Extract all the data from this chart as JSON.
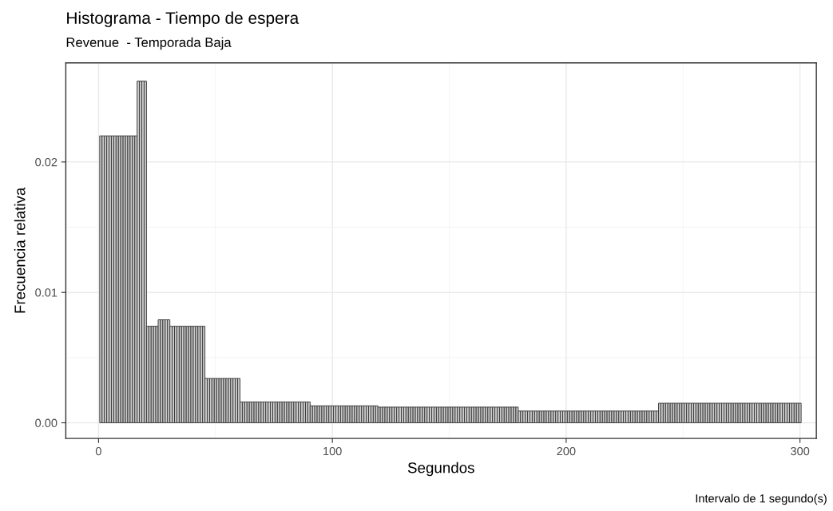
{
  "chart_data": {
    "type": "histogram",
    "title": "Histograma - Tiempo de espera",
    "subtitle": "Revenue  - Temporada Baja",
    "xlabel": "Segundos",
    "ylabel": "Frecuencia relativa",
    "annotations": [
      "Intervalo de 1 segundo(s)"
    ],
    "color": "#cccccc",
    "bins": [
      0.5,
      1.5,
      2.5,
      3.5,
      4.5,
      5.5,
      6.5,
      7.5,
      8.5,
      9.5,
      10.5,
      11.5,
      12.5,
      13.5,
      14.5,
      15.5,
      16.5,
      17.5,
      18.5,
      19.5,
      20.5,
      21.5,
      22.5,
      23.5,
      24.5,
      25.5,
      26.5,
      27.5,
      28.5,
      29.5,
      30.5,
      31.5,
      32.5,
      33.5,
      34.5,
      35.5,
      36.5,
      37.5,
      38.5,
      39.5,
      40.5,
      41.5,
      42.5,
      43.5,
      44.5,
      45.5,
      46.5,
      47.5,
      48.5,
      49.5,
      50.5,
      51.5,
      52.5,
      53.5,
      54.5,
      55.5,
      56.5,
      57.5,
      58.5,
      59.5,
      60.5,
      61.5,
      62.5,
      63.5,
      64.5,
      65.5,
      66.5,
      67.5,
      68.5,
      69.5,
      70.5,
      71.5,
      72.5,
      73.5,
      74.5,
      75.5,
      76.5,
      77.5,
      78.5,
      79.5,
      80.5,
      81.5,
      82.5,
      83.5,
      84.5,
      85.5,
      86.5,
      87.5,
      88.5,
      89.5,
      90.5,
      91.5,
      92.5,
      93.5,
      94.5,
      95.5,
      96.5,
      97.5,
      98.5,
      99.5,
      100.5,
      101.5,
      102.5,
      103.5,
      104.5,
      105.5,
      106.5,
      107.5,
      108.5,
      109.5,
      110.5,
      111.5,
      112.5,
      113.5,
      114.5,
      115.5,
      116.5,
      117.5,
      118.5,
      119.5,
      120.5,
      121.5,
      122.5,
      123.5,
      124.5,
      125.5,
      126.5,
      127.5,
      128.5,
      129.5,
      130.5,
      131.5,
      132.5,
      133.5,
      134.5,
      135.5,
      136.5,
      137.5,
      138.5,
      139.5,
      140.5,
      141.5,
      142.5,
      143.5,
      144.5,
      145.5,
      146.5,
      147.5,
      148.5,
      149.5,
      150.5,
      151.5,
      152.5,
      153.5,
      154.5,
      155.5,
      156.5,
      157.5,
      158.5,
      159.5,
      160.5,
      161.5,
      162.5,
      163.5,
      164.5,
      165.5,
      166.5,
      167.5,
      168.5,
      169.5,
      170.5,
      171.5,
      172.5,
      173.5,
      174.5,
      175.5,
      176.5,
      177.5,
      178.5,
      179.5,
      180.5,
      181.5,
      182.5,
      183.5,
      184.5,
      185.5,
      186.5,
      187.5,
      188.5,
      189.5,
      190.5,
      191.5,
      192.5,
      193.5,
      194.5,
      195.5,
      196.5,
      197.5,
      198.5,
      199.5,
      200.5,
      201.5,
      202.5,
      203.5,
      204.5,
      205.5,
      206.5,
      207.5,
      208.5,
      209.5,
      210.5,
      211.5,
      212.5,
      213.5,
      214.5,
      215.5,
      216.5,
      217.5,
      218.5,
      219.5,
      220.5,
      221.5,
      222.5,
      223.5,
      224.5,
      225.5,
      226.5,
      227.5,
      228.5,
      229.5,
      230.5,
      231.5,
      232.5,
      233.5,
      234.5,
      235.5,
      236.5,
      237.5,
      238.5,
      239.5,
      240.5,
      241.5,
      242.5,
      243.5,
      244.5,
      245.5,
      246.5,
      247.5,
      248.5,
      249.5,
      250.5,
      251.5,
      252.5,
      253.5,
      254.5,
      255.5,
      256.5,
      257.5,
      258.5,
      259.5,
      260.5,
      261.5,
      262.5,
      263.5,
      264.5,
      265.5,
      266.5,
      267.5,
      268.5,
      269.5,
      270.5,
      271.5,
      272.5,
      273.5,
      274.5,
      275.5,
      276.5,
      277.5,
      278.5,
      279.5,
      280.5,
      281.5,
      282.5,
      283.5,
      284.5,
      285.5,
      286.5,
      287.5,
      288.5,
      289.5,
      290.5,
      291.5,
      292.5,
      293.5,
      294.5,
      295.5,
      296.5,
      297.5,
      298.5,
      299.5,
      300.5
    ],
    "values": [
      0.022,
      0.022,
      0.022,
      0.022,
      0.022,
      0.022,
      0.022,
      0.022,
      0.022,
      0.022,
      0.022,
      0.022,
      0.022,
      0.022,
      0.022,
      0.022,
      0.0262,
      0.0262,
      0.0262,
      0.0262,
      0.0074,
      0.0074,
      0.0074,
      0.0074,
      0.0074,
      0.0079,
      0.0079,
      0.0079,
      0.0079,
      0.0079,
      0.0074,
      0.0074,
      0.0074,
      0.0074,
      0.0074,
      0.0074,
      0.0074,
      0.0074,
      0.0074,
      0.0074,
      0.0074,
      0.0074,
      0.0074,
      0.0074,
      0.0074,
      0.0034,
      0.0034,
      0.0034,
      0.0034,
      0.0034,
      0.0034,
      0.0034,
      0.0034,
      0.0034,
      0.0034,
      0.0034,
      0.0034,
      0.0034,
      0.0034,
      0.0034,
      0.0016,
      0.0016,
      0.0016,
      0.0016,
      0.0016,
      0.0016,
      0.0016,
      0.0016,
      0.0016,
      0.0016,
      0.0016,
      0.0016,
      0.0016,
      0.0016,
      0.0016,
      0.0016,
      0.0016,
      0.0016,
      0.0016,
      0.0016,
      0.0016,
      0.0016,
      0.0016,
      0.0016,
      0.0016,
      0.0016,
      0.0016,
      0.0016,
      0.0016,
      0.0016,
      0.0013,
      0.0013,
      0.0013,
      0.0013,
      0.0013,
      0.0013,
      0.0013,
      0.0013,
      0.0013,
      0.0013,
      0.0013,
      0.0013,
      0.0013,
      0.0013,
      0.0013,
      0.0013,
      0.0013,
      0.0013,
      0.0013,
      0.0013,
      0.0013,
      0.0013,
      0.0013,
      0.0013,
      0.0013,
      0.0013,
      0.0013,
      0.0013,
      0.0013,
      0.0012,
      0.0012,
      0.0012,
      0.0012,
      0.0012,
      0.0012,
      0.0012,
      0.0012,
      0.0012,
      0.0012,
      0.0012,
      0.0012,
      0.0012,
      0.0012,
      0.0012,
      0.0012,
      0.0012,
      0.0012,
      0.0012,
      0.0012,
      0.0012,
      0.0012,
      0.0012,
      0.0012,
      0.0012,
      0.0012,
      0.0012,
      0.0012,
      0.0012,
      0.0012,
      0.0012,
      0.0012,
      0.0012,
      0.0012,
      0.0012,
      0.0012,
      0.0012,
      0.0012,
      0.0012,
      0.0012,
      0.0012,
      0.0012,
      0.0012,
      0.0012,
      0.0012,
      0.0012,
      0.0012,
      0.0012,
      0.0012,
      0.0012,
      0.0012,
      0.0012,
      0.0012,
      0.0012,
      0.0012,
      0.0012,
      0.0012,
      0.0012,
      0.0012,
      0.0012,
      0.0009,
      0.0009,
      0.0009,
      0.0009,
      0.0009,
      0.0009,
      0.0009,
      0.0009,
      0.0009,
      0.0009,
      0.0009,
      0.0009,
      0.0009,
      0.0009,
      0.0009,
      0.0009,
      0.0009,
      0.0009,
      0.0009,
      0.0009,
      0.0009,
      0.0009,
      0.0009,
      0.0009,
      0.0009,
      0.0009,
      0.0009,
      0.0009,
      0.0009,
      0.0009,
      0.0009,
      0.0009,
      0.0009,
      0.0009,
      0.0009,
      0.0009,
      0.0009,
      0.0009,
      0.0009,
      0.0009,
      0.0009,
      0.0009,
      0.0009,
      0.0009,
      0.0009,
      0.0009,
      0.0009,
      0.0009,
      0.0009,
      0.0009,
      0.0009,
      0.0009,
      0.0009,
      0.0009,
      0.0009,
      0.0009,
      0.0009,
      0.0009,
      0.0009,
      0.0009,
      0.0015,
      0.0015,
      0.0015,
      0.0015,
      0.0015,
      0.0015,
      0.0015,
      0.0015,
      0.0015,
      0.0015,
      0.0015,
      0.0015,
      0.0015,
      0.0015,
      0.0015,
      0.0015,
      0.0015,
      0.0015,
      0.0015,
      0.0015,
      0.0015,
      0.0015,
      0.0015,
      0.0015,
      0.0015,
      0.0015,
      0.0015,
      0.0015,
      0.0015,
      0.0015,
      0.0015,
      0.0015,
      0.0015,
      0.0015,
      0.0015,
      0.0015,
      0.0015,
      0.0015,
      0.0015,
      0.0015,
      0.0015,
      0.0015,
      0.0015,
      0.0015,
      0.0015,
      0.0015,
      0.0015,
      0.0015,
      0.0015,
      0.0015,
      0.0015,
      0.0015,
      0.0015,
      0.0015,
      0.0015,
      0.0015,
      0.0015,
      0.0015,
      0.0015,
      0.0015,
      0.0015
    ],
    "xlim": [
      -14,
      307
    ],
    "ylim": [
      -0.0012,
      0.0276
    ],
    "xticks": [
      0,
      100,
      200,
      300
    ],
    "yticks": [
      {
        "value": 0,
        "label": "0.00"
      },
      {
        "value": 0.01,
        "label": "0.01"
      },
      {
        "value": 0.02,
        "label": "0.02"
      }
    ],
    "grid": true
  }
}
